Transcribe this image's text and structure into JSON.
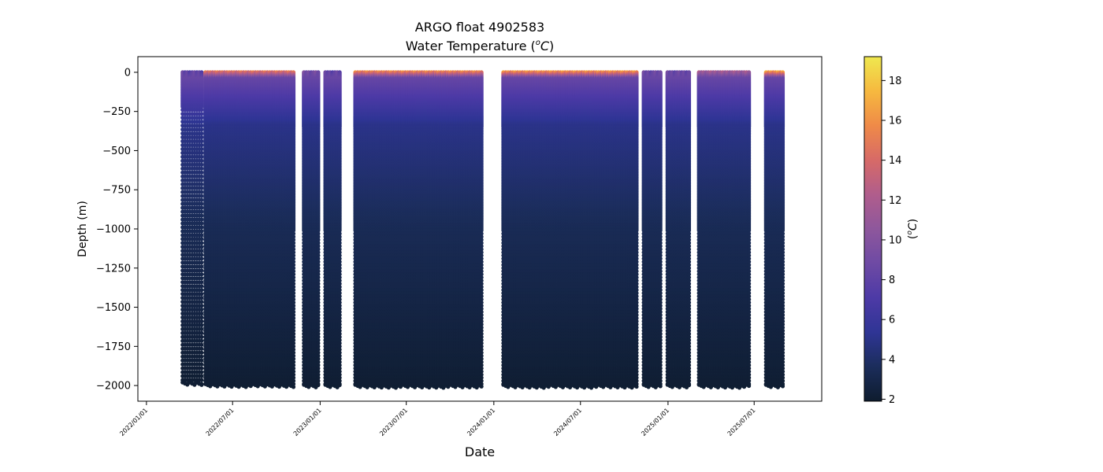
{
  "chart_data": {
    "type": "scatter",
    "title": "ARGO float 4902583",
    "subtitle_prefix": "Water Temperature (",
    "subtitle_sup": "o",
    "subtitle_unit": "C",
    "subtitle_suffix": ")",
    "xlabel": "Date",
    "ylabel": "Depth (m)",
    "ylim": [
      -2100,
      100
    ],
    "xlim": [
      "2021-12-14",
      "2025-11-20"
    ],
    "x_ticks": [
      "2022/01/01",
      "2022/07/01",
      "2023/01/01",
      "2023/07/01",
      "2024/01/01",
      "2024/07/01",
      "2025/01/01",
      "2025/07/01"
    ],
    "x_tick_dates": [
      "2022-01-01",
      "2022-07-01",
      "2023-01-01",
      "2023-07-01",
      "2024-01-01",
      "2024-07-01",
      "2025-01-01",
      "2025-07-01"
    ],
    "y_ticks": [
      0,
      -250,
      -500,
      -750,
      -1000,
      -1250,
      -1500,
      -1750,
      -2000
    ],
    "y_tick_labels": [
      "0",
      "−250",
      "−500",
      "−750",
      "−1000",
      "−1250",
      "−1500",
      "−1750",
      "−2000"
    ],
    "colorbar": {
      "label_prefix": "(",
      "label_sup": "o",
      "label_unit": "C",
      "label_suffix": ")",
      "range": [
        1.9,
        19.2
      ],
      "ticks": [
        2,
        4,
        6,
        8,
        10,
        12,
        14,
        16,
        18
      ],
      "tick_labels": [
        "2",
        "4",
        "6",
        "8",
        "10",
        "12",
        "14",
        "16",
        "18"
      ],
      "colormap": [
        "#0e1c2e",
        "#1b2d5b",
        "#2f3595",
        "#4d3aa6",
        "#6e4aa4",
        "#8e579c",
        "#b05d8c",
        "#d76a67",
        "#ef8a48",
        "#f6b93f",
        "#efe84f"
      ]
    },
    "profile_groups": [
      {
        "start": "2022-03-18",
        "end": "2022-04-30",
        "spacing_days": 5,
        "max_depth": -1980,
        "surface_temp": 9.0,
        "low_resolution": true
      },
      {
        "start": "2022-05-05",
        "end": "2022-11-07",
        "spacing_days": 5,
        "max_depth": -1990,
        "surface_temp": 15.5
      },
      {
        "start": "2022-11-28",
        "end": "2022-12-28",
        "spacing_days": 5,
        "max_depth": -1995,
        "surface_temp": 10.0
      },
      {
        "start": "2023-01-12",
        "end": "2023-02-13",
        "spacing_days": 5,
        "max_depth": -1995,
        "surface_temp": 9.0
      },
      {
        "start": "2023-03-16",
        "end": "2023-12-07",
        "spacing_days": 5,
        "max_depth": -1995,
        "surface_temp": 16.5
      },
      {
        "start": "2024-01-21",
        "end": "2024-10-28",
        "spacing_days": 5,
        "max_depth": -1995,
        "surface_temp": 17.0
      },
      {
        "start": "2024-11-11",
        "end": "2024-12-20",
        "spacing_days": 5,
        "max_depth": -1995,
        "surface_temp": 9.5
      },
      {
        "start": "2024-12-31",
        "end": "2025-02-15",
        "spacing_days": 5,
        "max_depth": -1995,
        "surface_temp": 9.5
      },
      {
        "start": "2025-03-07",
        "end": "2025-06-22",
        "spacing_days": 5,
        "max_depth": -1995,
        "surface_temp": 12.5
      },
      {
        "start": "2025-07-26",
        "end": "2025-08-30",
        "spacing_days": 5,
        "max_depth": -1995,
        "surface_temp": 17.5
      }
    ]
  }
}
